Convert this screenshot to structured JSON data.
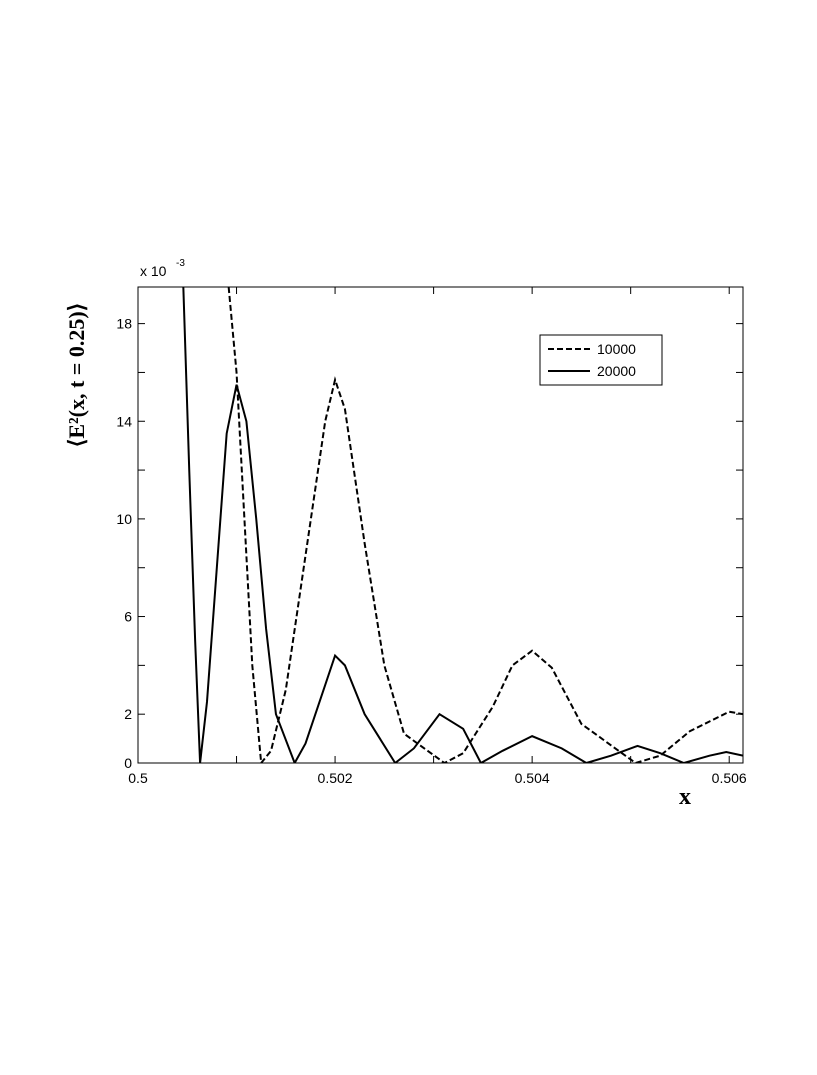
{
  "chart_data": {
    "type": "line",
    "x_label": "x",
    "y_label": "⟨E²(x, t = 0.25)⟩",
    "y_multiplier": "x 10",
    "y_multiplier_exp": "-3",
    "xlim": [
      0.5,
      0.50614
    ],
    "ylim": [
      0,
      19.5
    ],
    "xticks": [
      0.5,
      0.502,
      0.504,
      0.506
    ],
    "xminorticks": [
      0.501,
      0.503,
      0.505
    ],
    "yticks": [
      0,
      2,
      6,
      10,
      14,
      18
    ],
    "yminorticks": [
      4,
      8,
      12,
      16
    ],
    "legend": "upper right",
    "series": [
      {
        "name": "10000",
        "color": "#000000",
        "dash": "dashed",
        "x": [
          0.50092,
          0.501,
          0.50108,
          0.50116,
          0.50125,
          0.50135,
          0.5015,
          0.5017,
          0.5019,
          0.502,
          0.5021,
          0.5023,
          0.5025,
          0.5027,
          0.50311,
          0.5033,
          0.5036,
          0.5038,
          0.504,
          0.5042,
          0.5045,
          0.50505,
          0.5053,
          0.5056,
          0.506,
          0.50614
        ],
        "values": [
          19.5,
          16,
          10,
          4,
          0,
          0.5,
          3,
          8.5,
          14,
          15.7,
          14.5,
          9,
          4,
          1.2,
          0,
          0.4,
          2.3,
          4,
          4.6,
          3.9,
          1.6,
          0,
          0.3,
          1.3,
          2.1,
          2.0
        ]
      },
      {
        "name": "20000",
        "color": "#000000",
        "dash": "solid",
        "x": [
          0.50046,
          0.50052,
          0.50058,
          0.50063,
          0.5007,
          0.5008,
          0.5009,
          0.501,
          0.5011,
          0.5012,
          0.5013,
          0.5014,
          0.50159,
          0.5017,
          0.5019,
          0.502,
          0.5021,
          0.5023,
          0.50261,
          0.5028,
          0.50306,
          0.5033,
          0.50348,
          0.5037,
          0.504,
          0.5043,
          0.50455,
          0.5048,
          0.50507,
          0.5053,
          0.50554,
          0.5058,
          0.50597,
          0.50614
        ],
        "values": [
          19.5,
          12,
          5,
          0,
          2.5,
          8,
          13.5,
          15.5,
          14,
          10,
          5.5,
          2,
          0,
          0.8,
          3.2,
          4.4,
          4.0,
          2,
          0,
          0.6,
          2.0,
          1.4,
          0,
          0.5,
          1.1,
          0.6,
          0,
          0.3,
          0.7,
          0.4,
          0,
          0.3,
          0.45,
          0.3
        ]
      }
    ]
  }
}
